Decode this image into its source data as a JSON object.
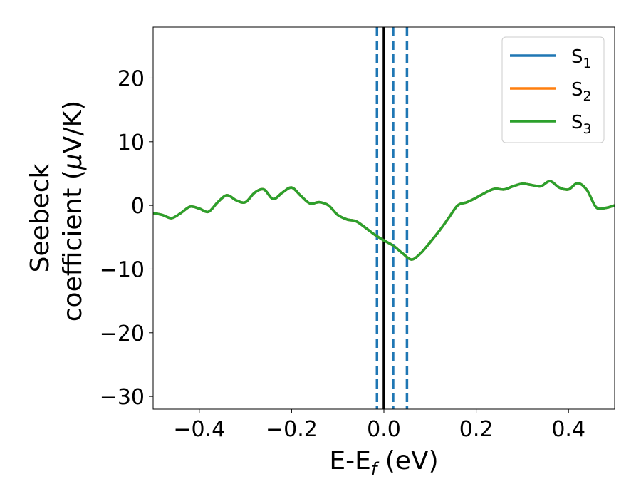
{
  "chart_data": {
    "type": "line",
    "xlabel": "E-E",
    "xlabel_sub": "f",
    "xlabel_unit": " (eV)",
    "ylabel_line1": "Seebeck",
    "ylabel_line2_prefix": "coefficient  (",
    "ylabel_line2_mu": "μ",
    "ylabel_line2_suffix": "V/K)",
    "xlim": [
      -0.5,
      0.5
    ],
    "ylim": [
      -32,
      28
    ],
    "x_ticks": [
      -0.4,
      -0.2,
      0.0,
      0.2,
      0.4
    ],
    "x_tick_labels": [
      "−0.4",
      "−0.2",
      "0.0",
      "0.2",
      "0.4"
    ],
    "y_ticks": [
      -30,
      -20,
      -10,
      0,
      10,
      20
    ],
    "y_tick_labels": [
      "−30",
      "−20",
      "−10",
      "0",
      "10",
      "20"
    ],
    "grid": false,
    "legend_position": "top-right",
    "vlines": [
      {
        "x": 0.0,
        "style": "solid",
        "color": "#000000"
      },
      {
        "x": -0.015,
        "style": "dashed",
        "color": "#1f77b4"
      },
      {
        "x": 0.02,
        "style": "dashed",
        "color": "#1f77b4"
      },
      {
        "x": 0.05,
        "style": "dashed",
        "color": "#1f77b4"
      }
    ],
    "series": [
      {
        "name": "S",
        "sub": "1",
        "color": "#1f77b4",
        "x": [
          -0.5,
          -0.48,
          -0.46,
          -0.44,
          -0.42,
          -0.4,
          -0.38,
          -0.36,
          -0.34,
          -0.32,
          -0.3,
          -0.28,
          -0.26,
          -0.24,
          -0.22,
          -0.2,
          -0.18,
          -0.16,
          -0.14,
          -0.12,
          -0.1,
          -0.08,
          -0.06,
          -0.04,
          -0.02,
          0.0,
          0.02,
          0.04,
          0.06,
          0.08,
          0.1,
          0.12,
          0.14,
          0.16,
          0.18,
          0.2,
          0.22,
          0.24,
          0.26,
          0.28,
          0.3,
          0.32,
          0.34,
          0.36,
          0.38,
          0.4,
          0.42,
          0.44,
          0.46,
          0.48,
          0.5
        ],
        "y": [
          -1.2,
          -1.5,
          -2.0,
          -1.2,
          -0.2,
          -0.5,
          -1.0,
          0.5,
          1.6,
          0.8,
          0.5,
          2.0,
          2.5,
          1.0,
          2.0,
          2.8,
          1.5,
          0.3,
          0.5,
          0.0,
          -1.5,
          -2.2,
          -2.5,
          -3.5,
          -4.6,
          -5.5,
          -6.3,
          -7.5,
          -8.5,
          -7.5,
          -5.8,
          -4.0,
          -2.0,
          0.0,
          0.5,
          1.2,
          2.0,
          2.6,
          2.5,
          3.0,
          3.4,
          3.2,
          3.0,
          3.8,
          2.8,
          2.5,
          3.5,
          2.4,
          -0.3,
          -0.4,
          0.0
        ]
      },
      {
        "name": "S",
        "sub": "2",
        "color": "#ff7f0e",
        "x": [
          -0.5,
          -0.48,
          -0.46,
          -0.44,
          -0.42,
          -0.4,
          -0.38,
          -0.36,
          -0.34,
          -0.32,
          -0.3,
          -0.28,
          -0.26,
          -0.24,
          -0.22,
          -0.2,
          -0.18,
          -0.16,
          -0.14,
          -0.12,
          -0.1,
          -0.08,
          -0.06,
          -0.04,
          -0.02,
          0.0,
          0.02,
          0.04,
          0.06,
          0.08,
          0.1,
          0.12,
          0.14,
          0.16,
          0.18,
          0.2,
          0.22,
          0.24,
          0.26,
          0.28,
          0.3,
          0.32,
          0.34,
          0.36,
          0.38,
          0.4,
          0.42,
          0.44,
          0.46,
          0.48,
          0.5
        ],
        "y": [
          -1.2,
          -1.5,
          -2.0,
          -1.2,
          -0.2,
          -0.5,
          -1.0,
          0.5,
          1.6,
          0.8,
          0.5,
          2.0,
          2.5,
          1.0,
          2.0,
          2.8,
          1.5,
          0.3,
          0.5,
          0.0,
          -1.5,
          -2.2,
          -2.5,
          -3.5,
          -4.6,
          -5.5,
          -6.3,
          -7.5,
          -8.5,
          -7.5,
          -5.8,
          -4.0,
          -2.0,
          0.0,
          0.5,
          1.2,
          2.0,
          2.6,
          2.5,
          3.0,
          3.4,
          3.2,
          3.0,
          3.8,
          2.8,
          2.5,
          3.5,
          2.4,
          -0.3,
          -0.4,
          0.0
        ]
      },
      {
        "name": "S",
        "sub": "3",
        "color": "#2ca02c",
        "x": [
          -0.5,
          -0.48,
          -0.46,
          -0.44,
          -0.42,
          -0.4,
          -0.38,
          -0.36,
          -0.34,
          -0.32,
          -0.3,
          -0.28,
          -0.26,
          -0.24,
          -0.22,
          -0.2,
          -0.18,
          -0.16,
          -0.14,
          -0.12,
          -0.1,
          -0.08,
          -0.06,
          -0.04,
          -0.02,
          0.0,
          0.02,
          0.04,
          0.06,
          0.08,
          0.1,
          0.12,
          0.14,
          0.16,
          0.18,
          0.2,
          0.22,
          0.24,
          0.26,
          0.28,
          0.3,
          0.32,
          0.34,
          0.36,
          0.38,
          0.4,
          0.42,
          0.44,
          0.46,
          0.48,
          0.5
        ],
        "y": [
          -1.2,
          -1.5,
          -2.0,
          -1.2,
          -0.2,
          -0.5,
          -1.0,
          0.5,
          1.6,
          0.8,
          0.5,
          2.0,
          2.5,
          1.0,
          2.0,
          2.8,
          1.5,
          0.3,
          0.5,
          0.0,
          -1.5,
          -2.2,
          -2.5,
          -3.5,
          -4.6,
          -5.5,
          -6.3,
          -7.5,
          -8.5,
          -7.5,
          -5.8,
          -4.0,
          -2.0,
          0.0,
          0.5,
          1.2,
          2.0,
          2.6,
          2.5,
          3.0,
          3.4,
          3.2,
          3.0,
          3.8,
          2.8,
          2.5,
          3.5,
          2.4,
          -0.3,
          -0.4,
          0.0
        ]
      }
    ]
  }
}
